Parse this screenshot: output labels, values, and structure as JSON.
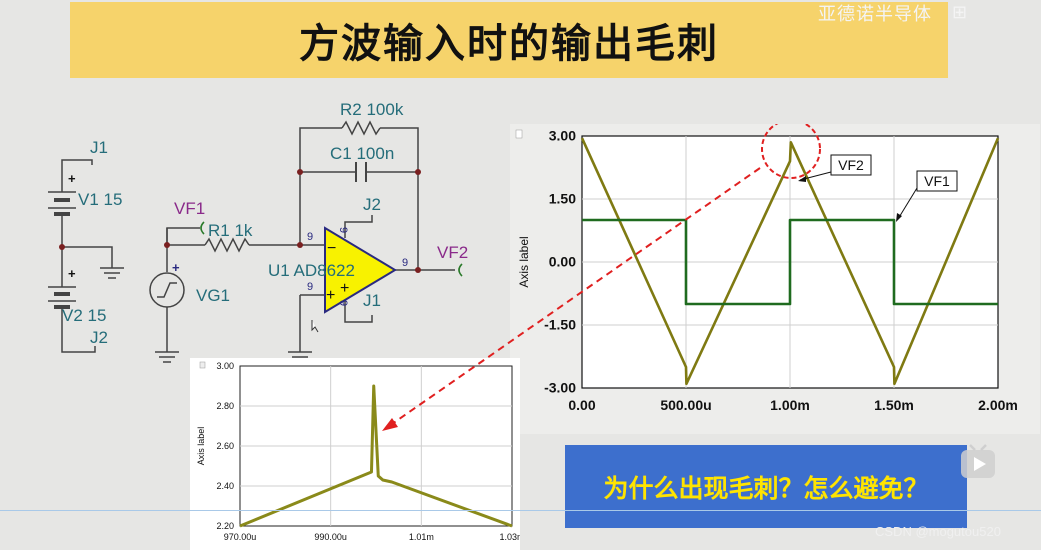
{
  "title": "方波输入时的输出毛刺",
  "brand": "亚德诺半导体",
  "brand_icon": "⊞",
  "question": "为什么出现毛刺？怎么避免？",
  "credit": "CSDN @mogutou520",
  "schematic": {
    "j1_top": "J1",
    "v1": "V1 15",
    "v2": "V2 15",
    "j2_bottom": "J2",
    "plus1": "+",
    "plus2": "+",
    "vf1": "VF1",
    "r1": "R1 1k",
    "vg1": "VG1",
    "vg_plus": "+",
    "r2": "R2 100k",
    "c1": "C1 100n",
    "j2_opamp": "J2",
    "j1_opamp": "J1",
    "u1": "U1 AD8622",
    "vf2": "VF2",
    "pin_a": "9",
    "pin_b": "9",
    "pin_c": "9",
    "pin_d": "9",
    "pin_e": "9",
    "minus": "−",
    "plus_in": "+",
    "plus_out": "+"
  },
  "chart_data": [
    {
      "type": "line",
      "ylabel": "Axis label",
      "x_ticks": [
        "0.00",
        "500.00u",
        "1.00m",
        "1.50m",
        "2.00m"
      ],
      "y_ticks": [
        "3.00",
        "1.50",
        "0.00",
        "-1.50",
        "-3.00"
      ],
      "xlim": [
        0,
        0.002
      ],
      "ylim": [
        -3,
        3
      ],
      "annotations": [
        "VF2",
        "VF1"
      ],
      "series": [
        {
          "name": "VF2",
          "color": "#7f7a12",
          "x": [
            0,
            0.0005,
            0.000502,
            0.001,
            0.001004,
            0.0015,
            0.001502,
            0.002
          ],
          "y": [
            2.95,
            -2.5,
            -2.9,
            2.4,
            2.85,
            -2.5,
            -2.9,
            2.95
          ]
        },
        {
          "name": "VF1",
          "color": "#1f6b1f",
          "x": [
            0,
            0.0005,
            0.0005,
            0.001,
            0.001,
            0.0015,
            0.0015,
            0.002
          ],
          "y": [
            1,
            1,
            -1,
            -1,
            1,
            1,
            -1,
            -1
          ]
        }
      ]
    },
    {
      "type": "line",
      "ylabel": "Axis label",
      "x_ticks": [
        "970.00u",
        "990.00u",
        "1.01m",
        "1.03m"
      ],
      "y_ticks": [
        "3.00",
        "2.80",
        "2.60",
        "2.40",
        "2.20"
      ],
      "xlim": [
        0.00097,
        0.00103
      ],
      "ylim": [
        2.2,
        3.0
      ],
      "series": [
        {
          "name": "VF2",
          "color": "#8a8a1a",
          "x": [
            0.00097,
            0.000999,
            0.0009995,
            0.0010005,
            0.0010015,
            0.0010035,
            0.00103
          ],
          "y": [
            2.2,
            2.47,
            2.9,
            2.45,
            2.43,
            2.42,
            2.2
          ]
        }
      ]
    }
  ]
}
